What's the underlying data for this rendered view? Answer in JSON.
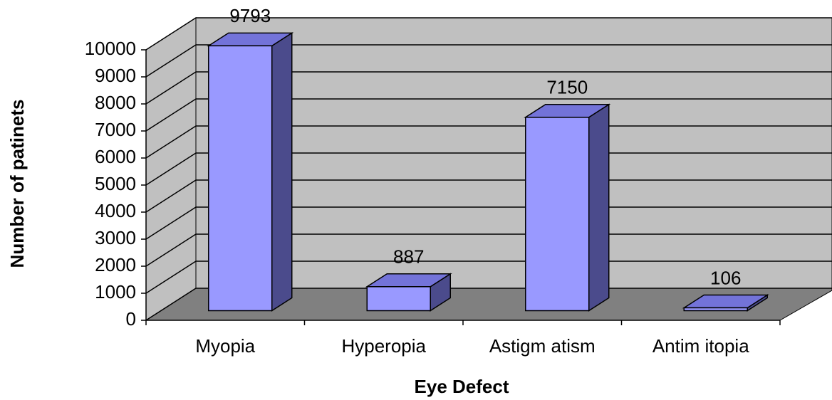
{
  "chart_data": {
    "type": "bar3d",
    "xlabel": "Eye Defect",
    "ylabel": "Number of patinets",
    "categories": [
      "Myopia",
      "Hyperopia",
      "Astigm atism",
      "Antim itopia"
    ],
    "values": [
      9793,
      887,
      7150,
      106
    ],
    "color": "#9999ff",
    "ylim": [
      0,
      10000
    ],
    "yticks": [
      0,
      1000,
      2000,
      3000,
      4000,
      5000,
      6000,
      7000,
      8000,
      9000,
      10000
    ],
    "grid": true
  }
}
